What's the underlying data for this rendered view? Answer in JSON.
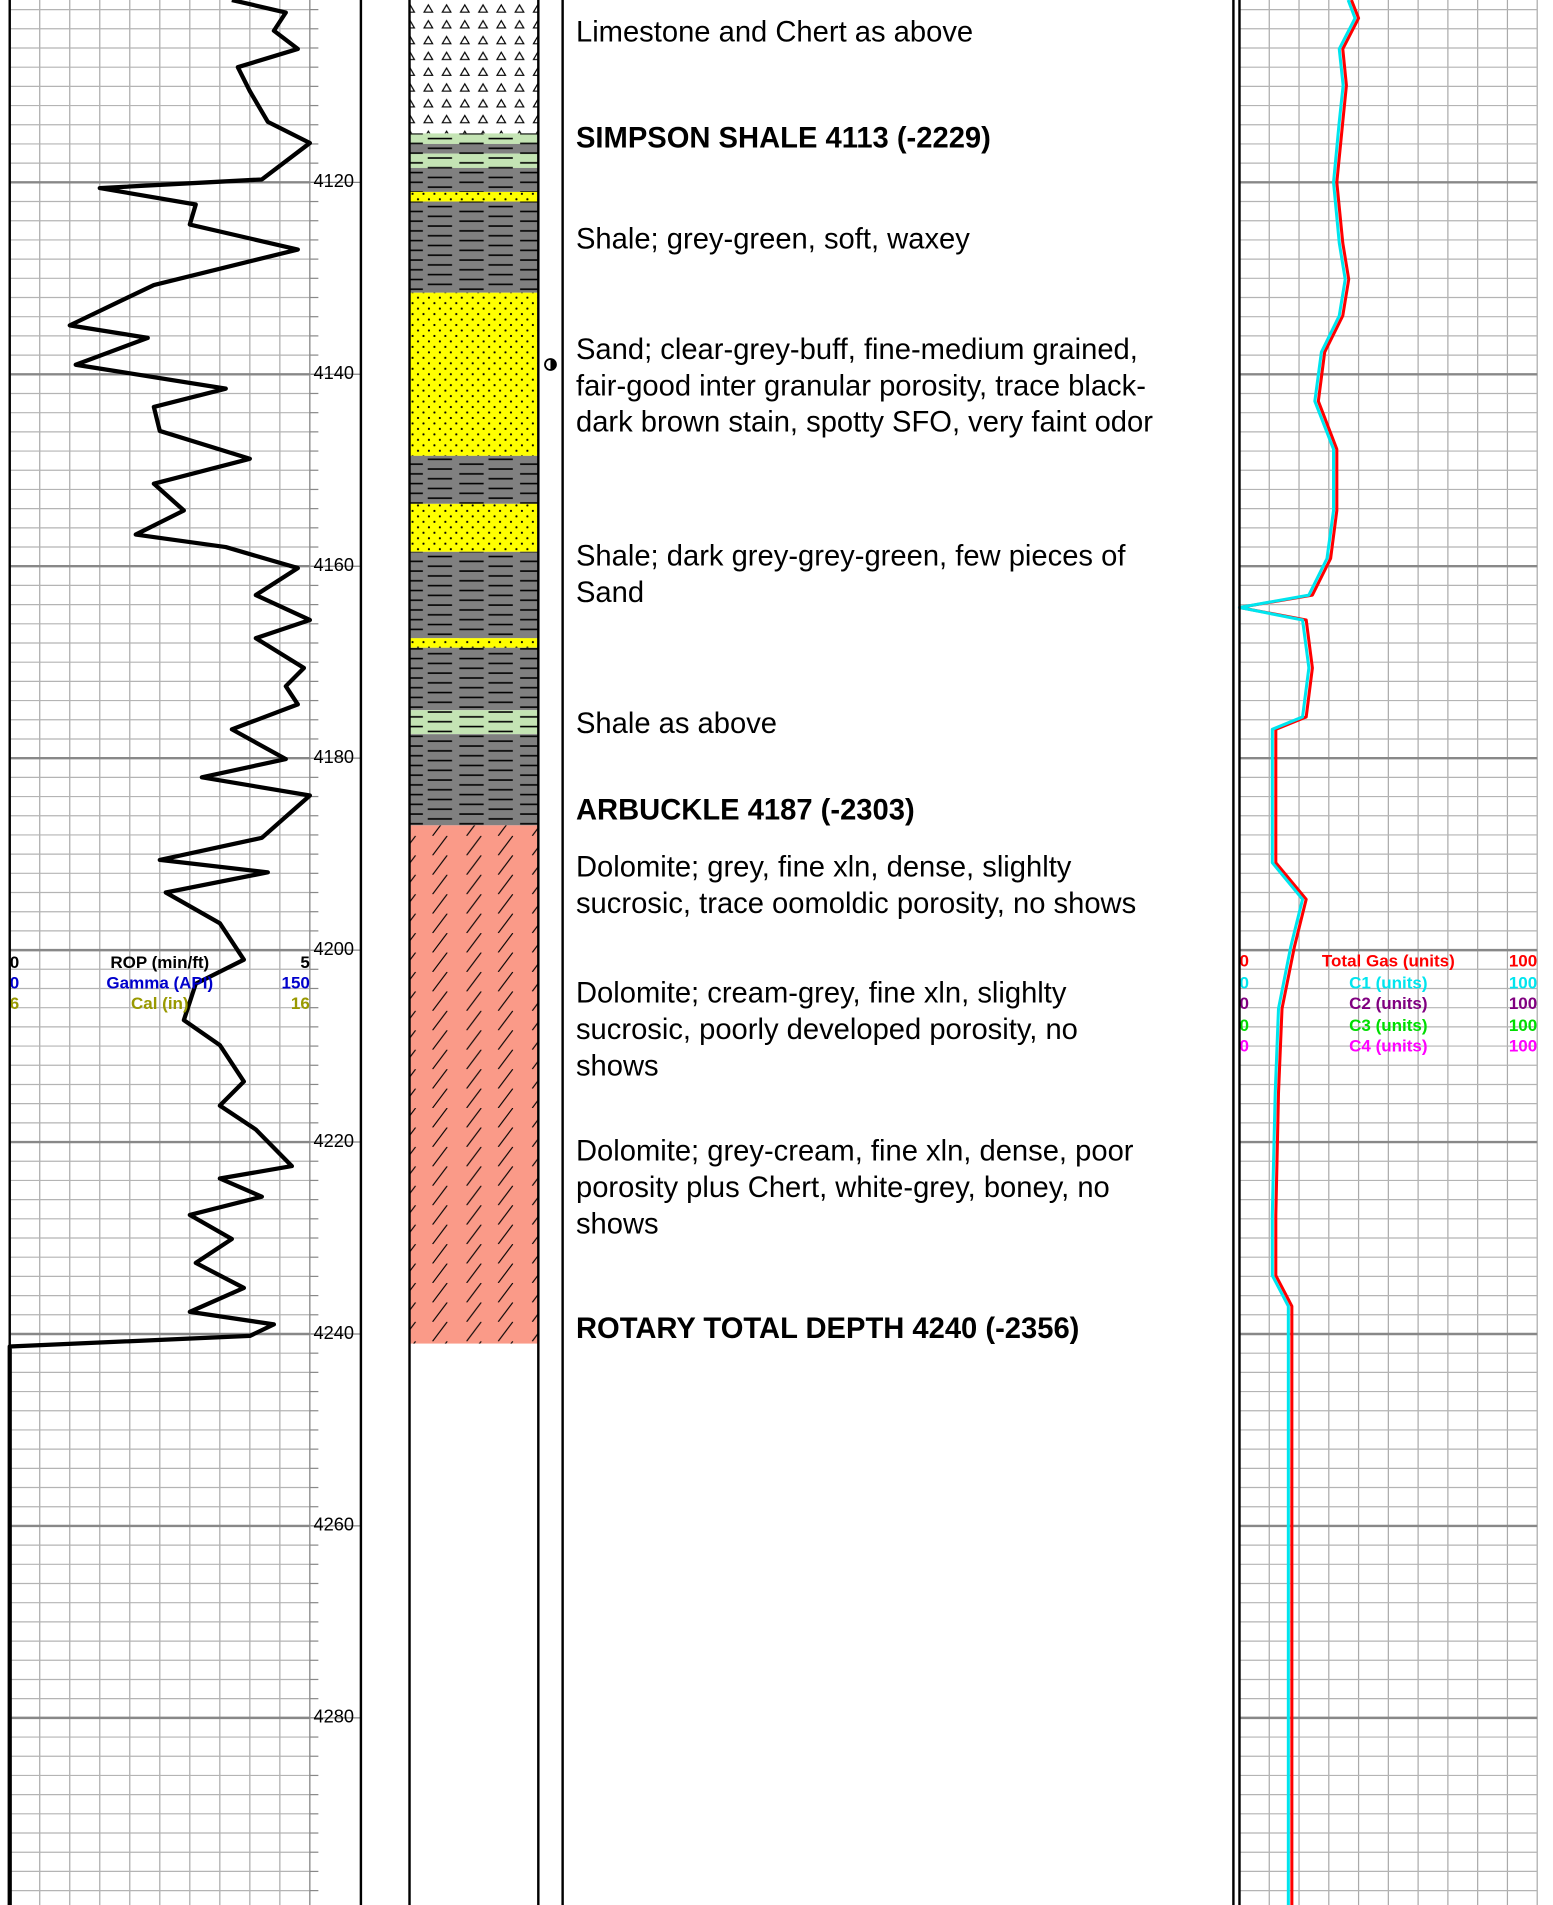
{
  "chart_data": {
    "type": "mudlog",
    "ylim": [
      4101,
      4299.5
    ],
    "depth_ticks": [
      4120,
      4140,
      4160,
      4180,
      4200,
      4220,
      4240,
      4260,
      4280
    ],
    "minor_ticks": [
      4102,
      4104,
      4106,
      4108,
      4110,
      4112,
      4114,
      4116,
      4118,
      4120,
      4122,
      4124,
      4126,
      4128,
      4130,
      4132,
      4134,
      4136,
      4138,
      4140,
      4142,
      4144,
      4146,
      4148,
      4150,
      4152,
      4154,
      4156,
      4158,
      4160,
      4162,
      4164,
      4166,
      4168,
      4170,
      4172,
      4174,
      4176,
      4178,
      4180,
      4182,
      4184,
      4186,
      4188,
      4190,
      4192,
      4194,
      4196,
      4198,
      4200,
      4202,
      4204,
      4206,
      4208,
      4210,
      4212,
      4214,
      4216,
      4218,
      4220,
      4222,
      4224,
      4226,
      4228,
      4230,
      4232,
      4234,
      4236,
      4238,
      4240,
      4242,
      4244,
      4246,
      4248,
      4250,
      4252,
      4254,
      4256,
      4258,
      4260,
      4262,
      4264,
      4266,
      4268,
      4270,
      4272,
      4274,
      4276,
      4278,
      4280,
      4282,
      4284,
      4286,
      4288,
      4290,
      4292,
      4294,
      4296,
      4298
    ],
    "lithology": [
      {
        "top": 4101,
        "base": 4114.9,
        "color": "#ffffff",
        "pattern": "chert"
      },
      {
        "top": 4114.9,
        "base": 4116,
        "color": "#c4e4b4",
        "pattern": "shale"
      },
      {
        "top": 4116,
        "base": 4117,
        "color": "#808080",
        "pattern": "shale"
      },
      {
        "top": 4117,
        "base": 4118.5,
        "color": "#c4e4b4",
        "pattern": "shale"
      },
      {
        "top": 4118.5,
        "base": 4121,
        "color": "#808080",
        "pattern": "shale"
      },
      {
        "top": 4121,
        "base": 4122,
        "color": "#ffff00",
        "pattern": "sand"
      },
      {
        "top": 4122,
        "base": 4131.5,
        "color": "#808080",
        "pattern": "shale"
      },
      {
        "top": 4131.5,
        "base": 4148.5,
        "color": "#ffff00",
        "pattern": "sand"
      },
      {
        "top": 4148.5,
        "base": 4153.5,
        "color": "#808080",
        "pattern": "shale"
      },
      {
        "top": 4153.5,
        "base": 4158.5,
        "color": "#ffff00",
        "pattern": "sand"
      },
      {
        "top": 4158.5,
        "base": 4167.5,
        "color": "#808080",
        "pattern": "shale"
      },
      {
        "top": 4167.5,
        "base": 4168.5,
        "color": "#ffff00",
        "pattern": "sand"
      },
      {
        "top": 4168.5,
        "base": 4175,
        "color": "#808080",
        "pattern": "shale"
      },
      {
        "top": 4175,
        "base": 4177.5,
        "color": "#c4e4b4",
        "pattern": "shale"
      },
      {
        "top": 4177.5,
        "base": 4187,
        "color": "#808080",
        "pattern": "shale"
      },
      {
        "top": 4187,
        "base": 4241,
        "color": "#fa9a88",
        "pattern": "dolomite"
      }
    ],
    "remarks": [
      {
        "lines": [
          "Limestone and Chert as above"
        ],
        "bold": false
      },
      {
        "lines": [
          "SIMPSON SHALE 4113 (-2229)"
        ],
        "bold": true
      },
      {
        "lines": [
          "Shale; grey-green, soft, waxey"
        ],
        "bold": false
      },
      {
        "lines": [
          "Sand; clear-grey-buff, fine-medium grained,",
          "fair-good inter granular porosity, trace black-",
          "dark brown stain, spotty SFO, very faint odor"
        ],
        "bold": false
      },
      {
        "lines": [
          "Shale; dark grey-grey-green, few pieces of",
          "Sand"
        ],
        "bold": false
      },
      {
        "lines": [
          "Shale as above"
        ],
        "bold": false
      },
      {
        "lines": [
          "ARBUCKLE 4187 (-2303)"
        ],
        "bold": true
      },
      {
        "lines": [
          "Dolomite; grey, fine xln, dense, slighlty",
          "sucrosic, trace oomoldic porosity, no shows"
        ],
        "bold": false
      },
      {
        "lines": [
          "Dolomite; cream-grey, fine xln, slighlty",
          "sucrosic, poorly developed porosity, no",
          "shows"
        ],
        "bold": false
      },
      {
        "lines": [
          "Dolomite; grey-cream, fine xln, dense, poor",
          "porosity plus Chert, white-grey, boney, no",
          "shows"
        ],
        "bold": false
      },
      {
        "lines": [
          "ROTARY TOTAL DEPTH 4240 (-2356)"
        ],
        "bold": true
      }
    ],
    "scales": [
      {
        "name": "ROP (min/ft)",
        "color": "#000000",
        "min": 0,
        "max": 5,
        "depth": [
          4101.0,
          4102.3,
          4104.2,
          4106.1,
          4108.0,
          4110.5,
          4113.7,
          4115.9,
          4119.7,
          4120.6,
          4122.3,
          4124.4,
          4127.0,
          4130.7,
          4134.9,
          4136.2,
          4139.0,
          4141.5,
          4143.4,
          4145.9,
          4148.8,
          4151.4,
          4154.2,
          4156.7,
          4158.0,
          4160.2,
          4163.0,
          4165.6,
          4167.5,
          4170.6,
          4172.5,
          4174.4,
          4177.0,
          4180.1,
          4182.0,
          4183.9,
          4188.3,
          4190.6,
          4191.9,
          4194.0,
          4197.2,
          4201.0,
          4203.5,
          4207.3,
          4209.9,
          4213.7,
          4216.2,
          4218.7,
          4222.5,
          4223.8,
          4225.7,
          4227.6,
          4230.1,
          4232.6,
          4235.2,
          4237.7,
          4239.0,
          4240.2,
          4241.3,
          4299.5
        ],
        "values": [
          3.7,
          4.6,
          4.4,
          4.8,
          3.8,
          4.0,
          4.3,
          5.0,
          4.2,
          1.5,
          3.1,
          3.0,
          4.8,
          2.4,
          1.0,
          2.3,
          1.1,
          3.6,
          2.4,
          2.5,
          4.0,
          2.4,
          2.9,
          2.1,
          3.6,
          4.8,
          4.1,
          5.0,
          4.1,
          4.9,
          4.6,
          4.8,
          3.7,
          4.6,
          3.2,
          5.0,
          4.2,
          2.5,
          4.3,
          2.6,
          3.5,
          3.9,
          3.1,
          2.9,
          3.5,
          3.9,
          3.5,
          4.1,
          4.7,
          3.5,
          4.2,
          3.0,
          3.7,
          3.1,
          3.9,
          3.0,
          4.4,
          4.0,
          0,
          0
        ]
      },
      {
        "name": "Gamma (API)",
        "color": "#0000cc",
        "min": 0,
        "max": 150
      },
      {
        "name": "Cal (in)",
        "color": "#999900",
        "min": 6,
        "max": 16
      },
      {
        "name": "Total Gas (units)",
        "color": "#ff0000",
        "min": 0,
        "max": 100,
        "depth": [
          4101.0,
          4102.9,
          4106.1,
          4109.9,
          4113.7,
          4120.0,
          4126.3,
          4130.1,
          4133.9,
          4137.7,
          4142.8,
          4147.8,
          4154.2,
          4159.2,
          4163.0,
          4164.3,
          4165.6,
          4170.6,
          4175.7,
          4177.0,
          4184.5,
          4190.9,
          4194.7,
          4199.7,
          4206.1,
          4214.9,
          4227.6,
          4233.9,
          4237.1,
          4299.5
        ],
        "values": [
          37.6,
          40.0,
          34.7,
          35.9,
          34.7,
          32.7,
          34.7,
          36.7,
          34.7,
          28.6,
          26.5,
          32.7,
          32.7,
          30.6,
          24.5,
          0,
          22.4,
          24.5,
          22.4,
          12.2,
          12.2,
          12.2,
          22.4,
          18.4,
          14.3,
          13.1,
          12.2,
          12.2,
          17.6,
          17.6
        ]
      },
      {
        "name": "C1 (units)",
        "color": "#00e5ee",
        "min": 0,
        "max": 100,
        "depth": [
          4101.0,
          4102.9,
          4106.1,
          4109.9,
          4113.7,
          4120.0,
          4126.3,
          4130.1,
          4133.9,
          4137.7,
          4142.8,
          4147.8,
          4154.2,
          4159.2,
          4163.0,
          4164.3,
          4165.6,
          4170.6,
          4175.7,
          4177.0,
          4184.5,
          4190.9,
          4194.7,
          4199.7,
          4206.1,
          4214.9,
          4227.6,
          4233.9,
          4237.1,
          4299.5
        ],
        "values": [
          36.5,
          38.8,
          33.5,
          34.8,
          33.5,
          31.6,
          33.5,
          35.5,
          33.5,
          27.5,
          25.3,
          31.6,
          31.6,
          29.4,
          23.3,
          0,
          21.2,
          23.3,
          21.2,
          11.0,
          11.0,
          11.0,
          21.2,
          17.2,
          13.1,
          12.0,
          11.0,
          11.0,
          16.4,
          16.4
        ]
      },
      {
        "name": "C2 (units)",
        "color": "#800080",
        "min": 0,
        "max": 100
      },
      {
        "name": "C3 (units)",
        "color": "#00dd00",
        "min": 0,
        "max": 100
      },
      {
        "name": "C4 (units)",
        "color": "#ff00ff",
        "min": 0,
        "max": 100
      }
    ]
  }
}
